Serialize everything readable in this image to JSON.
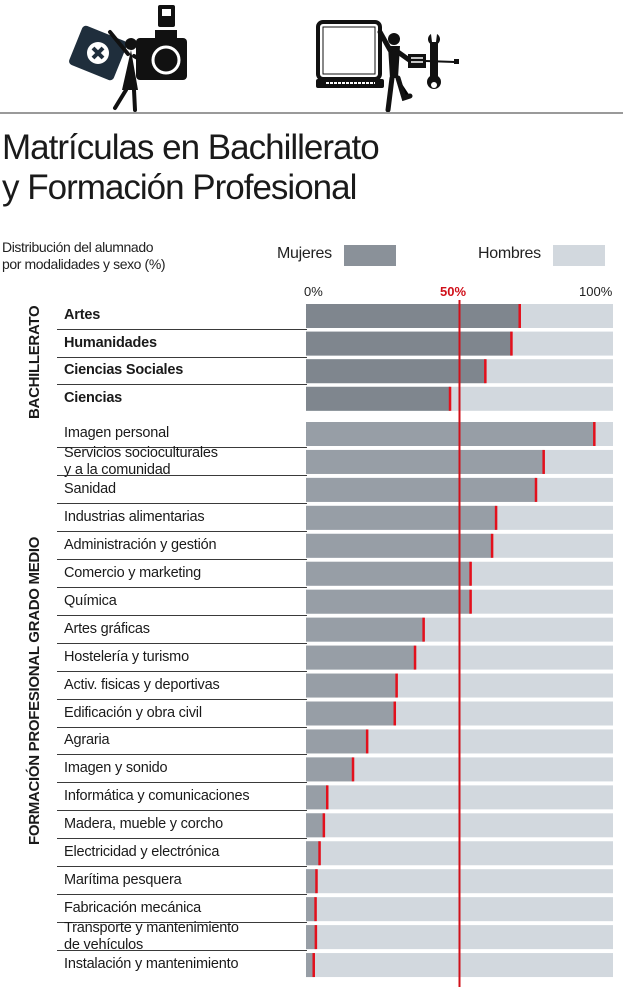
{
  "header": {
    "icons": [
      "first-aid-kit-icon",
      "woman-figure-icon",
      "camera-icon",
      "laptop-icon",
      "man-figure-icon",
      "wrench-icon",
      "screwdriver-icon"
    ]
  },
  "chart_data": {
    "type": "bar",
    "orientation": "horizontal-stacked-100",
    "title": "Matrículas en Bachillerato y Formación Profesional",
    "title_lines": [
      "Matrículas en Bachillerato",
      "y Formación Profesional"
    ],
    "subtitle_lines": [
      "Distribución del alumnado",
      "por modalidades y sexo (%)"
    ],
    "xlabel": "",
    "ylabel": "",
    "xlim": [
      0,
      100
    ],
    "ticks": [
      "0%",
      "50%",
      "100%"
    ],
    "reference_line": 50,
    "legend": [
      {
        "name": "Mujeres",
        "color": "#8a9199"
      },
      {
        "name": "Hombres",
        "color": "#d2d8de"
      }
    ],
    "legend_placement": "top",
    "colors": {
      "mujeres_bachillerato": "#7f868e",
      "mujeres_fp": "#979ea6",
      "hombres": "#d2d8de",
      "marker": "#e3101c",
      "reference": "#d0101a"
    },
    "groups": [
      {
        "name": "BACHILLERATO",
        "bold": true,
        "categories": [
          "Artes",
          "Humanidades",
          "Ciencias Sociales",
          "Ciencias"
        ],
        "series": [
          {
            "name": "Mujeres",
            "values": [
              69.7,
              67.0,
              58.5,
              47.0
            ]
          },
          {
            "name": "Hombres",
            "values": [
              30.3,
              33.0,
              41.5,
              53.0
            ]
          }
        ]
      },
      {
        "name": "FORMACIÓN PROFESIONAL GRADO MEDIO",
        "bold": false,
        "categories": [
          "Imagen personal",
          "Servicios socioculturales\ny a la comunidad",
          "Sanidad",
          "Industrias alimentarias",
          "Administración y gestión",
          "Comercio y marketing",
          "Química",
          "Artes gráficas",
          "Hostelería y turismo",
          "Activ. fisicas y deportivas",
          "Edificación y obra civil",
          "Agraria",
          "Imagen y sonido",
          "Informática y comunicaciones",
          "Madera, mueble y corcho",
          "Electricidad y electrónica",
          "Marítima pesquera",
          "Fabricación mecánica",
          "Transporte y mantenimiento\nde vehículos",
          "Instalación y mantenimiento"
        ],
        "series": [
          {
            "name": "Mujeres",
            "values": [
              94.0,
              77.5,
              75.0,
              62.0,
              60.7,
              53.7,
              53.7,
              38.4,
              35.6,
              29.6,
              29.0,
              20.0,
              15.4,
              7.0,
              5.9,
              4.5,
              3.5,
              3.2,
              3.3,
              2.6
            ]
          },
          {
            "name": "Hombres",
            "values": [
              6.0,
              22.5,
              25.0,
              38.0,
              39.3,
              46.3,
              46.3,
              61.6,
              64.4,
              70.4,
              71.0,
              80.0,
              84.6,
              93.0,
              94.1,
              95.5,
              96.5,
              96.8,
              96.7,
              97.4
            ]
          }
        ]
      }
    ]
  }
}
